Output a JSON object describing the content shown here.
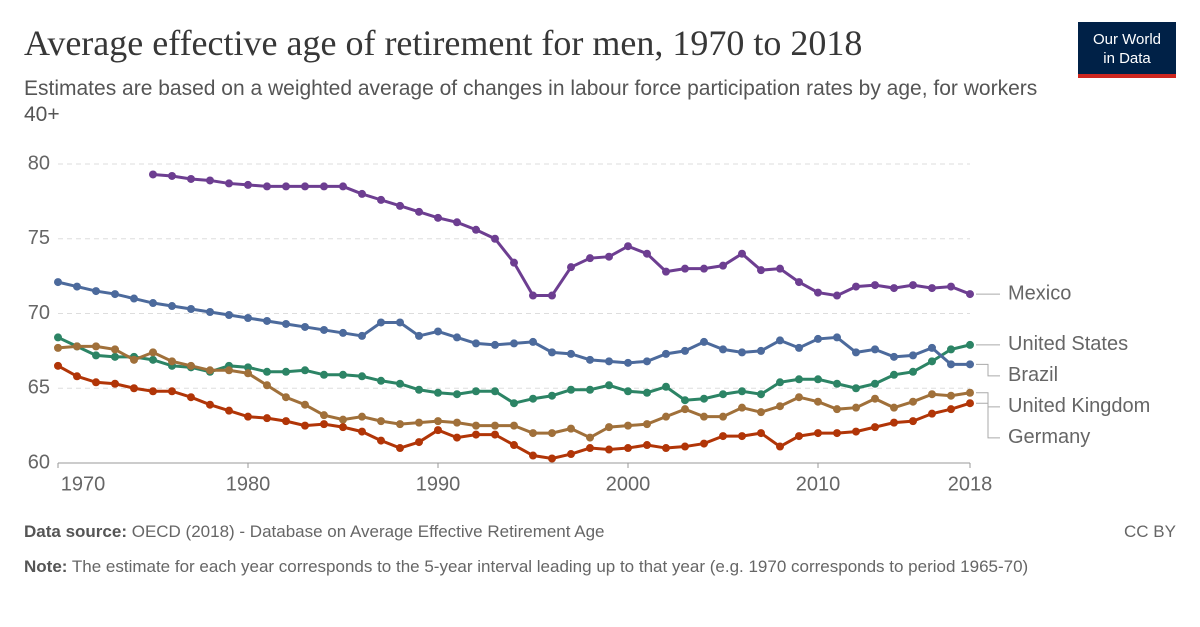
{
  "chart_data": {
    "type": "line",
    "title": "Average effective age of retirement for men, 1970 to 2018",
    "subtitle": "Estimates are based on a weighted average of changes in labour force participation rates by age, for workers 40+",
    "x": [
      1970,
      1971,
      1972,
      1973,
      1974,
      1975,
      1976,
      1977,
      1978,
      1979,
      1980,
      1981,
      1982,
      1983,
      1984,
      1985,
      1986,
      1987,
      1988,
      1989,
      1990,
      1991,
      1992,
      1993,
      1994,
      1995,
      1996,
      1997,
      1998,
      1999,
      2000,
      2001,
      2002,
      2003,
      2004,
      2005,
      2006,
      2007,
      2008,
      2009,
      2010,
      2011,
      2012,
      2013,
      2014,
      2015,
      2016,
      2017,
      2018
    ],
    "series": [
      {
        "name": "Mexico",
        "color": "#6d3e91",
        "values": [
          null,
          null,
          null,
          null,
          null,
          79.3,
          79.2,
          79.0,
          78.9,
          78.7,
          78.6,
          78.5,
          78.5,
          78.5,
          78.5,
          78.5,
          78.0,
          77.6,
          77.2,
          76.8,
          76.4,
          76.1,
          75.6,
          75.0,
          73.4,
          71.2,
          71.2,
          73.1,
          73.7,
          73.8,
          74.5,
          74.0,
          72.8,
          73.0,
          73.0,
          73.2,
          74.0,
          72.9,
          73.0,
          72.1,
          71.4,
          71.2,
          71.8,
          71.9,
          71.7,
          71.9,
          71.7,
          71.8,
          71.3
        ]
      },
      {
        "name": "United States",
        "color": "#2c8465",
        "values": [
          68.4,
          67.8,
          67.2,
          67.1,
          67.1,
          66.9,
          66.5,
          66.4,
          66.1,
          66.5,
          66.4,
          66.1,
          66.1,
          66.2,
          65.9,
          65.9,
          65.8,
          65.5,
          65.3,
          64.9,
          64.7,
          64.6,
          64.8,
          64.8,
          64.0,
          64.3,
          64.5,
          64.9,
          64.9,
          65.2,
          64.8,
          64.7,
          65.1,
          64.2,
          64.3,
          64.6,
          64.8,
          64.6,
          65.4,
          65.6,
          65.6,
          65.3,
          65.0,
          65.3,
          65.9,
          66.1,
          66.8,
          67.6,
          67.9
        ]
      },
      {
        "name": "Brazil",
        "color": "#4c6a9c",
        "values": [
          72.1,
          71.8,
          71.5,
          71.3,
          71.0,
          70.7,
          70.5,
          70.3,
          70.1,
          69.9,
          69.7,
          69.5,
          69.3,
          69.1,
          68.9,
          68.7,
          68.5,
          69.4,
          69.4,
          68.5,
          68.8,
          68.4,
          68.0,
          67.9,
          68.0,
          68.1,
          67.4,
          67.3,
          66.9,
          66.8,
          66.7,
          66.8,
          67.3,
          67.5,
          68.1,
          67.6,
          67.4,
          67.5,
          68.2,
          67.7,
          68.3,
          68.4,
          67.4,
          67.6,
          67.1,
          67.2,
          67.7,
          66.6,
          66.6
        ]
      },
      {
        "name": "United Kingdom",
        "color": "#a0703a",
        "values": [
          67.7,
          67.8,
          67.8,
          67.6,
          66.9,
          67.4,
          66.8,
          66.5,
          66.2,
          66.2,
          66.0,
          65.2,
          64.4,
          63.9,
          63.2,
          62.9,
          63.1,
          62.8,
          62.6,
          62.7,
          62.8,
          62.7,
          62.5,
          62.5,
          62.5,
          62.0,
          62.0,
          62.3,
          61.7,
          62.4,
          62.5,
          62.6,
          63.1,
          63.6,
          63.1,
          63.1,
          63.7,
          63.4,
          63.8,
          64.4,
          64.1,
          63.6,
          63.7,
          64.3,
          63.7,
          64.1,
          64.6,
          64.5,
          64.7
        ]
      },
      {
        "name": "Germany",
        "color": "#b13507",
        "values": [
          66.5,
          65.8,
          65.4,
          65.3,
          65.0,
          64.8,
          64.8,
          64.4,
          63.9,
          63.5,
          63.1,
          63.0,
          62.8,
          62.5,
          62.6,
          62.4,
          62.1,
          61.5,
          61.0,
          61.4,
          62.2,
          61.7,
          61.9,
          61.9,
          61.2,
          60.5,
          60.3,
          60.6,
          61.0,
          60.9,
          61.0,
          61.2,
          61.0,
          61.1,
          61.3,
          61.8,
          61.8,
          62.0,
          61.1,
          61.8,
          62.0,
          62.0,
          62.1,
          62.4,
          62.7,
          62.8,
          63.3,
          63.6,
          64.0
        ]
      }
    ],
    "xlim": [
      1970,
      2018
    ],
    "xticks": [
      1970,
      1980,
      1990,
      2000,
      2010,
      2018
    ],
    "ylim": [
      60,
      80
    ],
    "yticks": [
      60,
      65,
      70,
      75,
      80
    ],
    "grid": true,
    "source_label": "Data source:",
    "source": "OECD (2018) - Database on Average Effective Retirement Age",
    "note_label": "Note:",
    "note": "The estimate for each year corresponds to the 5-year interval leading up to that year (e.g. 1970 corresponds to period 1965-70)",
    "license": "CC BY",
    "logo": [
      "Our World",
      "in Data"
    ]
  }
}
